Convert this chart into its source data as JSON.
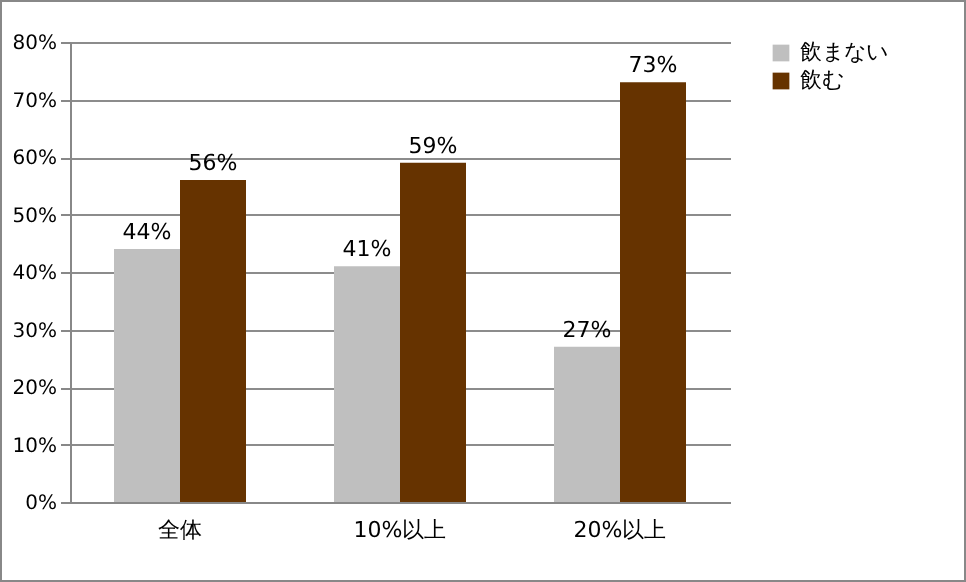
{
  "chart_data": {
    "type": "bar",
    "categories": [
      "全体",
      "10%以上",
      "20%以上"
    ],
    "series": [
      {
        "name": "飲まない",
        "color": "#bfbfbf",
        "values": [
          44,
          41,
          27
        ],
        "value_labels": [
          "44%",
          "41%",
          "27%"
        ]
      },
      {
        "name": "飲む",
        "color": "#663300",
        "values": [
          56,
          59,
          73
        ],
        "value_labels": [
          "56%",
          "59%",
          "73%"
        ]
      }
    ],
    "ylim": [
      0,
      80
    ],
    "yticks": [
      {
        "value": 0,
        "label": "0%"
      },
      {
        "value": 10,
        "label": "10%"
      },
      {
        "value": 20,
        "label": "20%"
      },
      {
        "value": 30,
        "label": "30%"
      },
      {
        "value": 40,
        "label": "40%"
      },
      {
        "value": 50,
        "label": "50%"
      },
      {
        "value": 60,
        "label": "60%"
      },
      {
        "value": 70,
        "label": "70%"
      },
      {
        "value": 80,
        "label": "80%"
      }
    ],
    "grid": "y",
    "legend": "right"
  }
}
